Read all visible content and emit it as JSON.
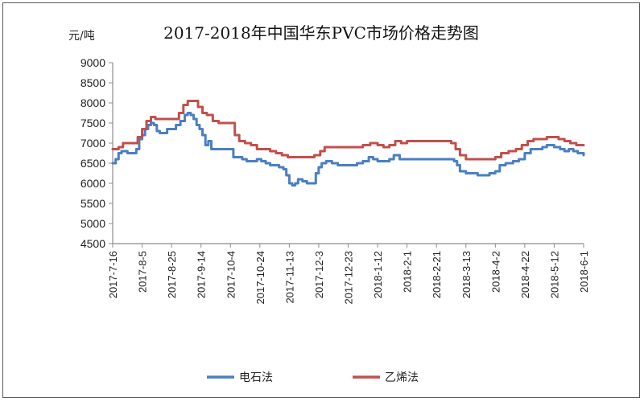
{
  "chart_data": {
    "type": "line",
    "title": "2017-2018年中国华东PVC市场价格走势图",
    "ylabel": "元/吨",
    "xlabel": "",
    "ylim": [
      4500,
      9000
    ],
    "yticks": [
      4500,
      5000,
      5500,
      6000,
      6500,
      7000,
      7500,
      8000,
      8500,
      9000
    ],
    "xticks": [
      "2017-7-16",
      "2017-8-5",
      "2017-8-25",
      "2017-9-14",
      "2017-10-4",
      "2017-10-24",
      "2017-11-13",
      "2017-12-3",
      "2017-12-23",
      "2018-1-12",
      "2018-2-1",
      "2018-2-21",
      "2018-3-13",
      "2018-4-2",
      "2018-4-22",
      "2018-5-12",
      "2018-6-1"
    ],
    "grid": false,
    "legend_position": "bottom",
    "series": [
      {
        "name": "电石法",
        "color": "#4a7fc1",
        "points": [
          [
            "2017-7-16",
            6500
          ],
          [
            "2017-7-18",
            6600
          ],
          [
            "2017-7-20",
            6750
          ],
          [
            "2017-7-22",
            6800
          ],
          [
            "2017-7-26",
            6750
          ],
          [
            "2017-7-30",
            6750
          ],
          [
            "2017-8-1",
            6850
          ],
          [
            "2017-8-3",
            7100
          ],
          [
            "2017-8-5",
            7200
          ],
          [
            "2017-8-7",
            7350
          ],
          [
            "2017-8-9",
            7450
          ],
          [
            "2017-8-11",
            7500
          ],
          [
            "2017-8-13",
            7450
          ],
          [
            "2017-8-15",
            7300
          ],
          [
            "2017-8-17",
            7250
          ],
          [
            "2017-8-20",
            7250
          ],
          [
            "2017-8-22",
            7350
          ],
          [
            "2017-8-26",
            7350
          ],
          [
            "2017-8-28",
            7450
          ],
          [
            "2017-8-31",
            7550
          ],
          [
            "2017-9-3",
            7700
          ],
          [
            "2017-9-5",
            7750
          ],
          [
            "2017-9-7",
            7700
          ],
          [
            "2017-9-9",
            7600
          ],
          [
            "2017-9-11",
            7450
          ],
          [
            "2017-9-13",
            7350
          ],
          [
            "2017-9-15",
            7200
          ],
          [
            "2017-9-17",
            6950
          ],
          [
            "2017-9-19",
            7050
          ],
          [
            "2017-9-21",
            6850
          ],
          [
            "2017-9-25",
            6850
          ],
          [
            "2017-9-29",
            6850
          ],
          [
            "2017-10-3",
            6850
          ],
          [
            "2017-10-6",
            6650
          ],
          [
            "2017-10-9",
            6650
          ],
          [
            "2017-10-12",
            6600
          ],
          [
            "2017-10-15",
            6550
          ],
          [
            "2017-10-19",
            6550
          ],
          [
            "2017-10-22",
            6600
          ],
          [
            "2017-10-25",
            6550
          ],
          [
            "2017-10-28",
            6500
          ],
          [
            "2017-10-31",
            6450
          ],
          [
            "2017-11-3",
            6450
          ],
          [
            "2017-11-6",
            6400
          ],
          [
            "2017-11-9",
            6350
          ],
          [
            "2017-11-11",
            6200
          ],
          [
            "2017-11-13",
            6000
          ],
          [
            "2017-11-15",
            5950
          ],
          [
            "2017-11-17",
            6000
          ],
          [
            "2017-11-19",
            6100
          ],
          [
            "2017-11-22",
            6050
          ],
          [
            "2017-11-25",
            6000
          ],
          [
            "2017-11-28",
            6000
          ],
          [
            "2017-12-1",
            6250
          ],
          [
            "2017-12-3",
            6400
          ],
          [
            "2017-12-5",
            6500
          ],
          [
            "2017-12-8",
            6550
          ],
          [
            "2017-12-12",
            6500
          ],
          [
            "2017-12-16",
            6450
          ],
          [
            "2017-12-20",
            6450
          ],
          [
            "2017-12-25",
            6450
          ],
          [
            "2017-12-29",
            6500
          ],
          [
            "2018-1-2",
            6550
          ],
          [
            "2018-1-6",
            6650
          ],
          [
            "2018-1-9",
            6600
          ],
          [
            "2018-1-12",
            6550
          ],
          [
            "2018-1-16",
            6550
          ],
          [
            "2018-1-20",
            6600
          ],
          [
            "2018-1-23",
            6700
          ],
          [
            "2018-1-27",
            6600
          ],
          [
            "2018-2-1",
            6600
          ],
          [
            "2018-2-10",
            6600
          ],
          [
            "2018-2-20",
            6600
          ],
          [
            "2018-3-1",
            6600
          ],
          [
            "2018-3-5",
            6550
          ],
          [
            "2018-3-7",
            6450
          ],
          [
            "2018-3-9",
            6300
          ],
          [
            "2018-3-13",
            6250
          ],
          [
            "2018-3-17",
            6250
          ],
          [
            "2018-3-21",
            6200
          ],
          [
            "2018-3-25",
            6200
          ],
          [
            "2018-3-29",
            6250
          ],
          [
            "2018-4-2",
            6300
          ],
          [
            "2018-4-5",
            6450
          ],
          [
            "2018-4-9",
            6500
          ],
          [
            "2018-4-14",
            6550
          ],
          [
            "2018-4-18",
            6600
          ],
          [
            "2018-4-22",
            6750
          ],
          [
            "2018-4-26",
            6850
          ],
          [
            "2018-4-30",
            6850
          ],
          [
            "2018-5-4",
            6900
          ],
          [
            "2018-5-7",
            6950
          ],
          [
            "2018-5-12",
            6900
          ],
          [
            "2018-5-16",
            6850
          ],
          [
            "2018-5-19",
            6800
          ],
          [
            "2018-5-22",
            6850
          ],
          [
            "2018-5-25",
            6800
          ],
          [
            "2018-5-28",
            6750
          ],
          [
            "2018-6-1",
            6700
          ]
        ]
      },
      {
        "name": "乙烯法",
        "color": "#c0504d",
        "points": [
          [
            "2017-7-16",
            6850
          ],
          [
            "2017-7-20",
            6900
          ],
          [
            "2017-7-23",
            7000
          ],
          [
            "2017-7-26",
            7000
          ],
          [
            "2017-7-30",
            7000
          ],
          [
            "2017-8-2",
            7150
          ],
          [
            "2017-8-5",
            7350
          ],
          [
            "2017-8-8",
            7550
          ],
          [
            "2017-8-11",
            7650
          ],
          [
            "2017-8-14",
            7600
          ],
          [
            "2017-8-18",
            7600
          ],
          [
            "2017-8-22",
            7600
          ],
          [
            "2017-8-26",
            7600
          ],
          [
            "2017-8-30",
            7750
          ],
          [
            "2017-9-2",
            7950
          ],
          [
            "2017-9-5",
            8050
          ],
          [
            "2017-9-9",
            8050
          ],
          [
            "2017-9-12",
            7900
          ],
          [
            "2017-9-15",
            7750
          ],
          [
            "2017-9-18",
            7700
          ],
          [
            "2017-9-22",
            7550
          ],
          [
            "2017-9-26",
            7500
          ],
          [
            "2017-9-30",
            7500
          ],
          [
            "2017-10-4",
            7500
          ],
          [
            "2017-10-7",
            7200
          ],
          [
            "2017-10-10",
            7050
          ],
          [
            "2017-10-14",
            7000
          ],
          [
            "2017-10-18",
            6950
          ],
          [
            "2017-10-22",
            6850
          ],
          [
            "2017-10-27",
            6850
          ],
          [
            "2017-10-31",
            6800
          ],
          [
            "2017-11-4",
            6750
          ],
          [
            "2017-11-8",
            6700
          ],
          [
            "2017-11-12",
            6650
          ],
          [
            "2017-11-16",
            6650
          ],
          [
            "2017-11-20",
            6650
          ],
          [
            "2017-11-25",
            6650
          ],
          [
            "2017-11-30",
            6700
          ],
          [
            "2017-12-4",
            6800
          ],
          [
            "2017-12-7",
            6900
          ],
          [
            "2017-12-12",
            6900
          ],
          [
            "2017-12-18",
            6900
          ],
          [
            "2017-12-23",
            6900
          ],
          [
            "2017-12-28",
            6900
          ],
          [
            "2018-1-2",
            6950
          ],
          [
            "2018-1-7",
            7000
          ],
          [
            "2018-1-12",
            6950
          ],
          [
            "2018-1-16",
            6900
          ],
          [
            "2018-1-20",
            6950
          ],
          [
            "2018-1-24",
            7050
          ],
          [
            "2018-1-28",
            7000
          ],
          [
            "2018-2-1",
            7050
          ],
          [
            "2018-2-10",
            7050
          ],
          [
            "2018-2-20",
            7050
          ],
          [
            "2018-2-28",
            7050
          ],
          [
            "2018-3-3",
            7000
          ],
          [
            "2018-3-6",
            6850
          ],
          [
            "2018-3-9",
            6700
          ],
          [
            "2018-3-13",
            6600
          ],
          [
            "2018-3-18",
            6600
          ],
          [
            "2018-3-23",
            6600
          ],
          [
            "2018-3-28",
            6600
          ],
          [
            "2018-4-2",
            6650
          ],
          [
            "2018-4-6",
            6750
          ],
          [
            "2018-4-11",
            6800
          ],
          [
            "2018-4-16",
            6850
          ],
          [
            "2018-4-20",
            6950
          ],
          [
            "2018-4-24",
            7050
          ],
          [
            "2018-4-28",
            7100
          ],
          [
            "2018-5-3",
            7100
          ],
          [
            "2018-5-7",
            7150
          ],
          [
            "2018-5-11",
            7150
          ],
          [
            "2018-5-15",
            7100
          ],
          [
            "2018-5-19",
            7050
          ],
          [
            "2018-5-23",
            7000
          ],
          [
            "2018-5-27",
            6950
          ],
          [
            "2018-6-1",
            6950
          ]
        ]
      }
    ]
  }
}
